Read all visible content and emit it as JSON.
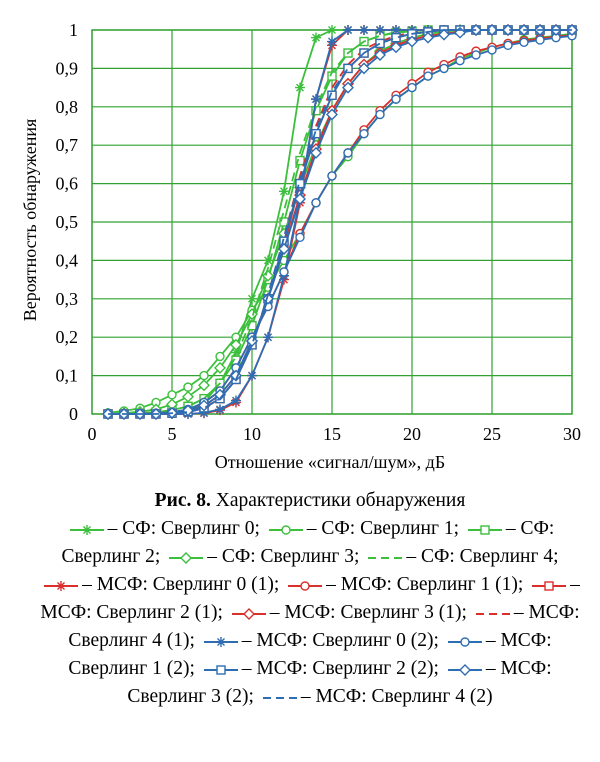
{
  "chart_data": {
    "type": "line",
    "xlabel": "Отношение «сигнал/шум», дБ",
    "ylabel": "Вероятность обнаружения",
    "xlim": [
      0,
      30
    ],
    "ylim": [
      0,
      1
    ],
    "xticks": [
      "0",
      "5",
      "10",
      "15",
      "20",
      "25",
      "30"
    ],
    "yticks": [
      "0",
      "0,1",
      "0,2",
      "0,3",
      "0,4",
      "0,5",
      "0,6",
      "0,7",
      "0,8",
      "0,9",
      "1"
    ],
    "grid": true,
    "colors": {
      "sf": "#3cbf3c",
      "msf1": "#d9302c",
      "msf2": "#2f6db3",
      "grid": "#33a033"
    },
    "x": [
      1,
      2,
      3,
      4,
      5,
      6,
      7,
      8,
      9,
      10,
      11,
      12,
      13,
      14,
      15,
      16,
      17,
      18,
      19,
      20,
      21,
      22,
      23,
      24,
      25,
      26,
      27,
      28,
      29,
      30
    ],
    "series": [
      {
        "name": "СФ: Сверлинг 0",
        "group": "sf",
        "marker": "star",
        "dash": false,
        "values": [
          0,
          0,
          0,
          0,
          0.003,
          0.01,
          0.03,
          0.08,
          0.16,
          0.3,
          0.4,
          0.58,
          0.85,
          0.98,
          1,
          1,
          1,
          1,
          1,
          1,
          1,
          1,
          1,
          1,
          1,
          1,
          1,
          1,
          1,
          1
        ]
      },
      {
        "name": "СФ: Сверлинг 1",
        "group": "sf",
        "marker": "circle",
        "dash": false,
        "values": [
          0.003,
          0.008,
          0.015,
          0.03,
          0.05,
          0.07,
          0.1,
          0.15,
          0.2,
          0.27,
          0.33,
          0.4,
          0.47,
          0.55,
          0.62,
          0.67,
          0.73,
          0.78,
          0.82,
          0.85,
          0.88,
          0.9,
          0.925,
          0.94,
          0.955,
          0.965,
          0.975,
          0.98,
          0.985,
          0.99
        ]
      },
      {
        "name": "СФ: Сверлинг 2",
        "group": "sf",
        "marker": "square",
        "dash": false,
        "values": [
          0,
          0,
          0.002,
          0.005,
          0.01,
          0.02,
          0.04,
          0.08,
          0.14,
          0.23,
          0.35,
          0.5,
          0.66,
          0.79,
          0.88,
          0.94,
          0.97,
          0.985,
          0.993,
          0.997,
          1,
          1,
          1,
          1,
          1,
          1,
          1,
          1,
          1,
          1
        ]
      },
      {
        "name": "СФ: Сверлинг 3",
        "group": "sf",
        "marker": "diamond",
        "dash": false,
        "values": [
          0,
          0.002,
          0.006,
          0.012,
          0.025,
          0.045,
          0.075,
          0.12,
          0.18,
          0.26,
          0.36,
          0.47,
          0.59,
          0.7,
          0.79,
          0.86,
          0.91,
          0.945,
          0.965,
          0.98,
          0.99,
          0.995,
          1,
          1,
          1,
          1,
          1,
          1,
          1,
          1
        ]
      },
      {
        "name": "СФ: Сверлинг 4",
        "group": "sf",
        "marker": "none",
        "dash": true,
        "values": [
          0,
          0,
          0.002,
          0.005,
          0.01,
          0.02,
          0.04,
          0.08,
          0.15,
          0.25,
          0.38,
          0.53,
          0.68,
          0.8,
          0.89,
          0.94,
          0.97,
          0.985,
          0.995,
          1,
          1,
          1,
          1,
          1,
          1,
          1,
          1,
          1,
          1,
          1
        ]
      },
      {
        "name": "МСФ: Сверлинг 0 (1)",
        "group": "msf1",
        "marker": "star",
        "dash": false,
        "values": [
          0,
          0,
          0,
          0,
          0,
          0,
          0.002,
          0.01,
          0.03,
          0.1,
          0.2,
          0.35,
          0.55,
          0.82,
          0.96,
          1,
          1,
          1,
          1,
          1,
          1,
          1,
          1,
          1,
          1,
          1,
          1,
          1,
          1,
          1
        ]
      },
      {
        "name": "МСФ: Сверлинг 1 (1)",
        "group": "msf1",
        "marker": "circle",
        "dash": false,
        "values": [
          0,
          0,
          0,
          0.002,
          0.005,
          0.01,
          0.03,
          0.06,
          0.12,
          0.2,
          0.28,
          0.37,
          0.47,
          0.55,
          0.62,
          0.68,
          0.74,
          0.79,
          0.83,
          0.86,
          0.89,
          0.91,
          0.93,
          0.945,
          0.955,
          0.965,
          0.972,
          0.978,
          0.983,
          0.987
        ]
      },
      {
        "name": "МСФ: Сверлинг 2 (1)",
        "group": "msf1",
        "marker": "square",
        "dash": false,
        "values": [
          0,
          0,
          0,
          0,
          0.002,
          0.005,
          0.015,
          0.04,
          0.09,
          0.18,
          0.3,
          0.44,
          0.6,
          0.73,
          0.83,
          0.9,
          0.94,
          0.965,
          0.98,
          0.99,
          0.995,
          1,
          1,
          1,
          1,
          1,
          1,
          1,
          1,
          1
        ]
      },
      {
        "name": "МСФ: Сверлинг 3 (1)",
        "group": "msf1",
        "marker": "diamond",
        "dash": false,
        "values": [
          0,
          0,
          0,
          0,
          0.003,
          0.008,
          0.02,
          0.05,
          0.1,
          0.19,
          0.3,
          0.43,
          0.57,
          0.69,
          0.79,
          0.86,
          0.91,
          0.94,
          0.96,
          0.975,
          0.985,
          0.99,
          0.995,
          1,
          1,
          1,
          1,
          1,
          1,
          1
        ]
      },
      {
        "name": "МСФ: Сверлинг 4 (1)",
        "group": "msf1",
        "marker": "none",
        "dash": true,
        "values": [
          0,
          0,
          0,
          0,
          0.002,
          0.005,
          0.015,
          0.04,
          0.09,
          0.18,
          0.31,
          0.46,
          0.62,
          0.75,
          0.85,
          0.91,
          0.95,
          0.97,
          0.985,
          0.993,
          1,
          1,
          1,
          1,
          1,
          1,
          1,
          1,
          1,
          1
        ]
      },
      {
        "name": "МСФ: Сверлинг 0 (2)",
        "group": "msf2",
        "marker": "star",
        "dash": false,
        "values": [
          0,
          0,
          0,
          0,
          0,
          0,
          0.003,
          0.012,
          0.035,
          0.1,
          0.2,
          0.36,
          0.56,
          0.82,
          0.97,
          1,
          1,
          1,
          1,
          1,
          1,
          1,
          1,
          1,
          1,
          1,
          1,
          1,
          1,
          1
        ]
      },
      {
        "name": "МСФ: Сверлинг 1 (2)",
        "group": "msf2",
        "marker": "circle",
        "dash": false,
        "values": [
          0,
          0,
          0,
          0.002,
          0.005,
          0.012,
          0.03,
          0.06,
          0.12,
          0.2,
          0.28,
          0.37,
          0.46,
          0.55,
          0.62,
          0.68,
          0.73,
          0.78,
          0.82,
          0.85,
          0.88,
          0.9,
          0.92,
          0.935,
          0.948,
          0.96,
          0.968,
          0.974,
          0.98,
          0.985
        ]
      },
      {
        "name": "МСФ: Сверлинг 2 (2)",
        "group": "msf2",
        "marker": "square",
        "dash": false,
        "values": [
          0,
          0,
          0,
          0,
          0.002,
          0.006,
          0.016,
          0.04,
          0.09,
          0.18,
          0.3,
          0.45,
          0.6,
          0.73,
          0.83,
          0.9,
          0.94,
          0.965,
          0.98,
          0.99,
          0.995,
          1,
          1,
          1,
          1,
          1,
          1,
          1,
          1,
          1
        ]
      },
      {
        "name": "МСФ: Сверлинг 3 (2)",
        "group": "msf2",
        "marker": "diamond",
        "dash": false,
        "values": [
          0,
          0,
          0,
          0,
          0.003,
          0.009,
          0.022,
          0.05,
          0.1,
          0.19,
          0.3,
          0.43,
          0.56,
          0.68,
          0.78,
          0.85,
          0.9,
          0.935,
          0.955,
          0.97,
          0.98,
          0.988,
          0.993,
          1,
          1,
          1,
          1,
          1,
          1,
          1
        ]
      },
      {
        "name": "МСФ: Сверлинг 4 (2)",
        "group": "msf2",
        "marker": "none",
        "dash": true,
        "values": [
          0,
          0,
          0,
          0,
          0.002,
          0.005,
          0.015,
          0.04,
          0.09,
          0.18,
          0.31,
          0.46,
          0.61,
          0.74,
          0.84,
          0.9,
          0.94,
          0.965,
          0.98,
          0.99,
          0.995,
          1,
          1,
          1,
          1,
          1,
          1,
          1,
          1,
          1
        ]
      }
    ]
  },
  "caption": {
    "fig_no": "Рис. 8.",
    "fig_title": "Характеристики обнаружения",
    "legend": [
      {
        "text": "– СФ: Сверлинг 0;",
        "color": "#3cbf3c",
        "marker": "star",
        "dash": false
      },
      {
        "text": "– СФ: Сверлинг 1;",
        "color": "#3cbf3c",
        "marker": "circle",
        "dash": false
      },
      {
        "text": "– СФ: Сверлинг 2;",
        "color": "#3cbf3c",
        "marker": "square",
        "dash": false
      },
      {
        "text": "– СФ: Сверлинг 3;",
        "color": "#3cbf3c",
        "marker": "diamond",
        "dash": false
      },
      {
        "text": "– СФ: Сверлинг 4;",
        "color": "#3cbf3c",
        "marker": "none",
        "dash": true
      },
      {
        "text": "– МСФ: Сверлинг 0 (1);",
        "color": "#d9302c",
        "marker": "star",
        "dash": false
      },
      {
        "text": "– МСФ: Сверлинг 1 (1);",
        "color": "#d9302c",
        "marker": "circle",
        "dash": false
      },
      {
        "text": "– МСФ: Сверлинг 2 (1);",
        "color": "#d9302c",
        "marker": "square",
        "dash": false
      },
      {
        "text": "– МСФ: Сверлинг 3 (1);",
        "color": "#d9302c",
        "marker": "diamond",
        "dash": false
      },
      {
        "text": "– МСФ: Сверлинг 4 (1);",
        "color": "#d9302c",
        "marker": "none",
        "dash": true
      },
      {
        "text": "– МСФ: Сверлинг 0 (2);",
        "color": "#2f6db3",
        "marker": "star",
        "dash": false
      },
      {
        "text": "– МСФ: Сверлинг 1 (2);",
        "color": "#2f6db3",
        "marker": "circle",
        "dash": false
      },
      {
        "text": "– МСФ: Сверлинг 2 (2);",
        "color": "#2f6db3",
        "marker": "square",
        "dash": false
      },
      {
        "text": "– МСФ: Сверлинг 3 (2);",
        "color": "#2f6db3",
        "marker": "diamond",
        "dash": false
      },
      {
        "text": "– МСФ: Сверлинг 4 (2)",
        "color": "#2f6db3",
        "marker": "none",
        "dash": true
      }
    ]
  }
}
